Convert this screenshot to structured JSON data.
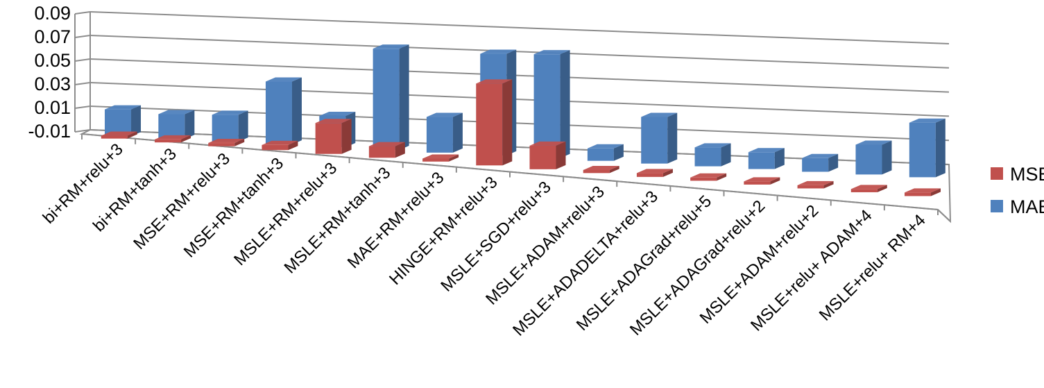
{
  "chart_data": {
    "type": "bar",
    "variant": "3d-clustered-column",
    "title": "",
    "xlabel": "",
    "ylabel": "",
    "ylim": [
      -0.01,
      0.09
    ],
    "y_ticks": [
      "-0.01",
      "0.01",
      "0.03",
      "0.05",
      "0.07",
      "0.09"
    ],
    "categories": [
      "bi+RM+relu+3",
      "bi+RM+tanh+3",
      "MSE+RM+relu+3",
      "MSE+RM+tanh+3",
      "MSLE+RM+relu+3",
      "MSLE+RM+tanh+3",
      "MAE+RM+relu+3",
      "HINGE+RM+relu+3",
      "MSLE+SGD+relu+3",
      "MSLE+ADAM+relu+3",
      "MSLE+ADADELTA+relu+3",
      "MSLE+ADAGrad+relu+5",
      "MSLE+ADAGrad+relu+2",
      "MSLE+ADAM+relu+2",
      "MSLE+relu+ ADAM+4",
      "MSLE+relu+ RM+4"
    ],
    "series": [
      {
        "name": "MSE",
        "color": "#c0504d",
        "values": [
          0.0005,
          0.0006,
          0.0008,
          0.0025,
          0.0265,
          0.0085,
          0.0005,
          0.0735,
          0.0195,
          0.0005,
          0.0012,
          0.0006,
          0.0005,
          0.0005,
          0.0005,
          0.0008
        ]
      },
      {
        "name": "MAE",
        "color": "#4f81bd",
        "values": [
          0.0235,
          0.0215,
          0.0235,
          0.0575,
          0.0275,
          0.0935,
          0.0315,
          0.0935,
          0.0955,
          0.0095,
          0.0415,
          0.0155,
          0.0135,
          0.0105,
          0.0255,
          0.0485
        ]
      }
    ],
    "legend": {
      "position": "right",
      "entries": [
        "MSE",
        "MAE"
      ]
    },
    "grid": true
  }
}
